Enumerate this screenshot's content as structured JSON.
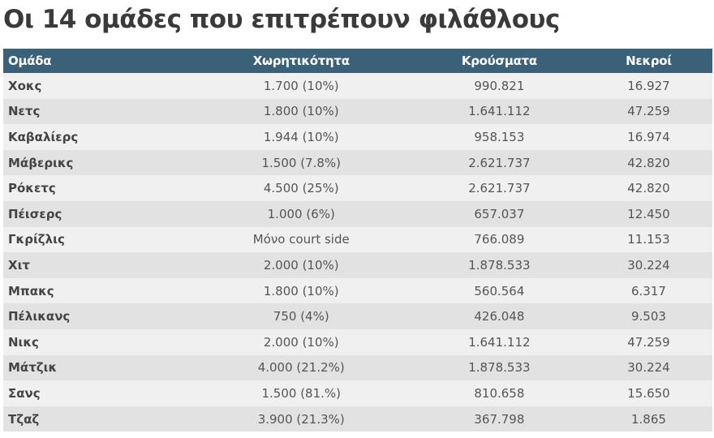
{
  "title": "Οι 14 ομάδες που επιτρέπουν φιλάθλους",
  "table": {
    "headers": [
      "Ομάδα",
      "Χωρητικότητα",
      "Κρούσματα",
      "Νεκροί"
    ],
    "rows": [
      [
        "Χοκς",
        "1.700 (10%)",
        "990.821",
        "16.927"
      ],
      [
        "Νετς",
        "1.800 (10%)",
        "1.641.112",
        "47.259"
      ],
      [
        "Καβαλίερς",
        "1.944 (10%)",
        "958.153",
        "16.974"
      ],
      [
        "Μάβερικς",
        "1.500 (7.8%)",
        "2.621.737",
        "42.820"
      ],
      [
        "Ρόκετς",
        "4.500 (25%)",
        "2.621.737",
        "42.820"
      ],
      [
        "Πέισερς",
        "1.000 (6%)",
        "657.037",
        "12.450"
      ],
      [
        "Γκρίζλις",
        "Μόνο court side",
        "766.089",
        "11.153"
      ],
      [
        "Χιτ",
        "2.000 (10%)",
        "1.878.533",
        "30.224"
      ],
      [
        "Μπακς",
        "1.800 (10%)",
        "560.564",
        "6.317"
      ],
      [
        "Πέλικανς",
        "750 (4%)",
        "426.048",
        "9.503"
      ],
      [
        "Νικς",
        "2.000 (10%)",
        "1.641.112",
        "47.259"
      ],
      [
        "Μάτζικ",
        "4.000 (21.2%)",
        "1.878.533",
        "30.224"
      ],
      [
        "Σανς",
        "1.500 (81.%)",
        "810.658",
        "15.650"
      ],
      [
        "Τζαζ",
        "3.900 (21.3%)",
        "367.798",
        "1.865"
      ]
    ]
  },
  "colors": {
    "header_bg": "#3a6178",
    "row_odd": "#f0f0f0",
    "row_even": "#e2e2e2",
    "title_text": "#3a3a3a"
  }
}
